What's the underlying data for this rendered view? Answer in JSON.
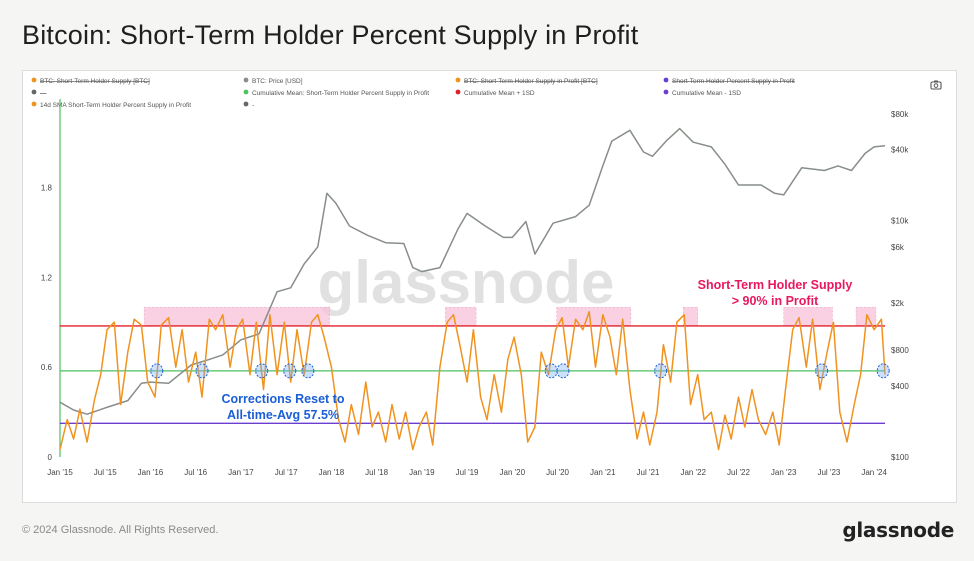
{
  "page": {
    "title": "Bitcoin: Short-Term Holder Percent Supply in Profit",
    "copyright": "© 2024 Glassnode. All Rights Reserved.",
    "brand": "glassnode",
    "watermark": "glassnode"
  },
  "camera_icon": "camera-icon",
  "colors": {
    "price": "#888e88",
    "sth_profit": "#f0921e",
    "mean": "#4cc260",
    "mean_plus": "#e0202a",
    "mean_minus": "#6a3fd0",
    "highlight": "#f7c2d9",
    "annotation_pink": "#e8185f",
    "annotation_blue": "#1a5fd6"
  },
  "chart_data": {
    "type": "line",
    "legend": [
      {
        "label": "BTC: Short-Term Holder Supply [BTC]",
        "color": "#f0921e",
        "disabled": true
      },
      {
        "label": "BTC: Price [USD]",
        "color": "#888e88",
        "disabled": false
      },
      {
        "label": "BTC: Short-Term Holder Supply in Profit [BTC]",
        "color": "#f0921e",
        "disabled": true
      },
      {
        "label": "Short-Term Holder Percent Supply in Profit",
        "color": "#6a3fd0",
        "disabled": true
      },
      {
        "label": "---",
        "color": "#666666",
        "disabled": true
      },
      {
        "label": "Cumulative Mean: Short-Term Holder Percent Supply in Profit",
        "color": "#4cc260",
        "disabled": false
      },
      {
        "label": "Cumulative Mean + 1SD",
        "color": "#e0202a",
        "disabled": false
      },
      {
        "label": "Cumulative Mean - 1SD",
        "color": "#6a3fd0",
        "disabled": false
      },
      {
        "label": "14d SMA Short-Term Holder Percent Supply in Profit",
        "color": "#f0921e",
        "disabled": false
      },
      {
        "label": "-",
        "color": "#666666",
        "disabled": false
      }
    ],
    "x_ticks": [
      "Jan '15",
      "Jul '15",
      "Jan '16",
      "Jul '16",
      "Jan '17",
      "Jul '17",
      "Jan '18",
      "Jul '18",
      "Jan '19",
      "Jul '19",
      "Jan '20",
      "Jul '20",
      "Jan '21",
      "Jul '21",
      "Jan '22",
      "Jul '22",
      "Jan '23",
      "Jul '23",
      "Jan '24"
    ],
    "x_range": [
      2015.0,
      2024.12
    ],
    "y_left_ticks": [
      "0",
      "0.6",
      "1.2",
      "1.8"
    ],
    "y_left_range": [
      0,
      2.35
    ],
    "y_right_ticks": [
      "$100",
      "$400",
      "$800",
      "$2k",
      "$6k",
      "$10k",
      "$40k",
      "$80k"
    ],
    "y_right_range": [
      100,
      95000
    ],
    "y_right_scale": "log",
    "mean": 0.575,
    "mean_plus_1sd": 0.875,
    "mean_minus_1sd": 0.225,
    "highlight_band": [
      0.875,
      1.0
    ],
    "highlight_ranges": [
      [
        2015.93,
        2017.98
      ],
      [
        2019.26,
        2019.6
      ],
      [
        2020.49,
        2021.31
      ],
      [
        2021.89,
        2022.05
      ],
      [
        2023.0,
        2023.54
      ],
      [
        2023.8,
        2024.02
      ]
    ],
    "reset_circles": [
      2016.07,
      2016.57,
      2017.23,
      2017.54,
      2017.74,
      2020.43,
      2020.56,
      2021.64,
      2023.42,
      2024.1
    ],
    "sth_profit_series": {
      "x": [
        2015.0,
        2015.08,
        2015.15,
        2015.22,
        2015.3,
        2015.38,
        2015.45,
        2015.52,
        2015.6,
        2015.67,
        2015.75,
        2015.82,
        2015.9,
        2015.97,
        2016.05,
        2016.12,
        2016.2,
        2016.28,
        2016.35,
        2016.42,
        2016.5,
        2016.57,
        2016.65,
        2016.72,
        2016.8,
        2016.88,
        2016.95,
        2017.02,
        2017.1,
        2017.17,
        2017.25,
        2017.32,
        2017.4,
        2017.48,
        2017.55,
        2017.62,
        2017.7,
        2017.78,
        2017.85,
        2017.92,
        2018.0,
        2018.08,
        2018.15,
        2018.22,
        2018.3,
        2018.38,
        2018.45,
        2018.52,
        2018.6,
        2018.67,
        2018.75,
        2018.82,
        2018.9,
        2018.97,
        2019.05,
        2019.12,
        2019.2,
        2019.28,
        2019.35,
        2019.42,
        2019.5,
        2019.57,
        2019.65,
        2019.72,
        2019.8,
        2019.88,
        2019.95,
        2020.02,
        2020.1,
        2020.17,
        2020.25,
        2020.32,
        2020.4,
        2020.48,
        2020.55,
        2020.62,
        2020.7,
        2020.78,
        2020.85,
        2020.92,
        2021.0,
        2021.08,
        2021.15,
        2021.22,
        2021.3,
        2021.38,
        2021.45,
        2021.52,
        2021.6,
        2021.67,
        2021.75,
        2021.82,
        2021.9,
        2021.97,
        2022.05,
        2022.12,
        2022.2,
        2022.28,
        2022.35,
        2022.42,
        2022.5,
        2022.57,
        2022.65,
        2022.72,
        2022.8,
        2022.88,
        2022.95,
        2023.02,
        2023.1,
        2023.17,
        2023.25,
        2023.32,
        2023.4,
        2023.48,
        2023.55,
        2023.62,
        2023.7,
        2023.78,
        2023.85,
        2023.92,
        2024.0,
        2024.08,
        2024.12
      ],
      "y": [
        0.05,
        0.25,
        0.12,
        0.32,
        0.1,
        0.38,
        0.55,
        0.85,
        0.9,
        0.35,
        0.7,
        0.92,
        0.88,
        0.5,
        0.4,
        0.88,
        0.93,
        0.6,
        0.85,
        0.5,
        0.7,
        0.4,
        0.92,
        0.85,
        0.95,
        0.6,
        0.85,
        0.92,
        0.55,
        0.9,
        0.45,
        0.95,
        0.55,
        0.9,
        0.5,
        0.85,
        0.55,
        0.9,
        0.95,
        0.8,
        0.6,
        0.25,
        0.1,
        0.35,
        0.15,
        0.5,
        0.2,
        0.3,
        0.1,
        0.35,
        0.12,
        0.3,
        0.05,
        0.2,
        0.3,
        0.08,
        0.6,
        0.9,
        0.95,
        0.75,
        0.5,
        0.85,
        0.4,
        0.25,
        0.55,
        0.3,
        0.65,
        0.8,
        0.55,
        0.1,
        0.2,
        0.7,
        0.55,
        0.85,
        0.93,
        0.6,
        0.92,
        0.85,
        0.97,
        0.6,
        0.95,
        0.8,
        0.55,
        0.92,
        0.45,
        0.12,
        0.3,
        0.08,
        0.3,
        0.75,
        0.5,
        0.9,
        0.95,
        0.35,
        0.55,
        0.25,
        0.3,
        0.05,
        0.28,
        0.12,
        0.4,
        0.2,
        0.45,
        0.25,
        0.15,
        0.3,
        0.08,
        0.45,
        0.85,
        0.93,
        0.6,
        0.92,
        0.45,
        0.7,
        0.9,
        0.3,
        0.1,
        0.35,
        0.55,
        0.95,
        0.85,
        0.92,
        0.55
      ]
    },
    "price_series": {
      "x": [
        2015.0,
        2015.15,
        2015.3,
        2015.5,
        2015.75,
        2015.9,
        2016.0,
        2016.2,
        2016.45,
        2016.6,
        2016.8,
        2017.0,
        2017.2,
        2017.4,
        2017.55,
        2017.7,
        2017.85,
        2017.95,
        2018.05,
        2018.2,
        2018.4,
        2018.6,
        2018.8,
        2018.9,
        2019.0,
        2019.2,
        2019.4,
        2019.5,
        2019.7,
        2019.9,
        2020.0,
        2020.15,
        2020.25,
        2020.45,
        2020.7,
        2020.85,
        2021.0,
        2021.1,
        2021.3,
        2021.45,
        2021.55,
        2021.7,
        2021.85,
        2022.0,
        2022.2,
        2022.35,
        2022.5,
        2022.75,
        2022.9,
        2023.0,
        2023.2,
        2023.45,
        2023.6,
        2023.75,
        2023.9,
        2024.0,
        2024.12
      ],
      "y": [
        290,
        250,
        230,
        260,
        300,
        420,
        430,
        420,
        600,
        650,
        730,
        980,
        1100,
        2500,
        2700,
        4300,
        6000,
        17000,
        14000,
        9000,
        7500,
        6500,
        6400,
        4000,
        3700,
        4000,
        8500,
        11500,
        9000,
        7200,
        7200,
        9800,
        5200,
        9500,
        10800,
        13500,
        29000,
        47000,
        58000,
        38000,
        35000,
        47000,
        60000,
        46000,
        42000,
        30000,
        20000,
        20000,
        17000,
        16500,
        28000,
        26500,
        29000,
        26500,
        37000,
        42000,
        43000
      ]
    }
  }
}
